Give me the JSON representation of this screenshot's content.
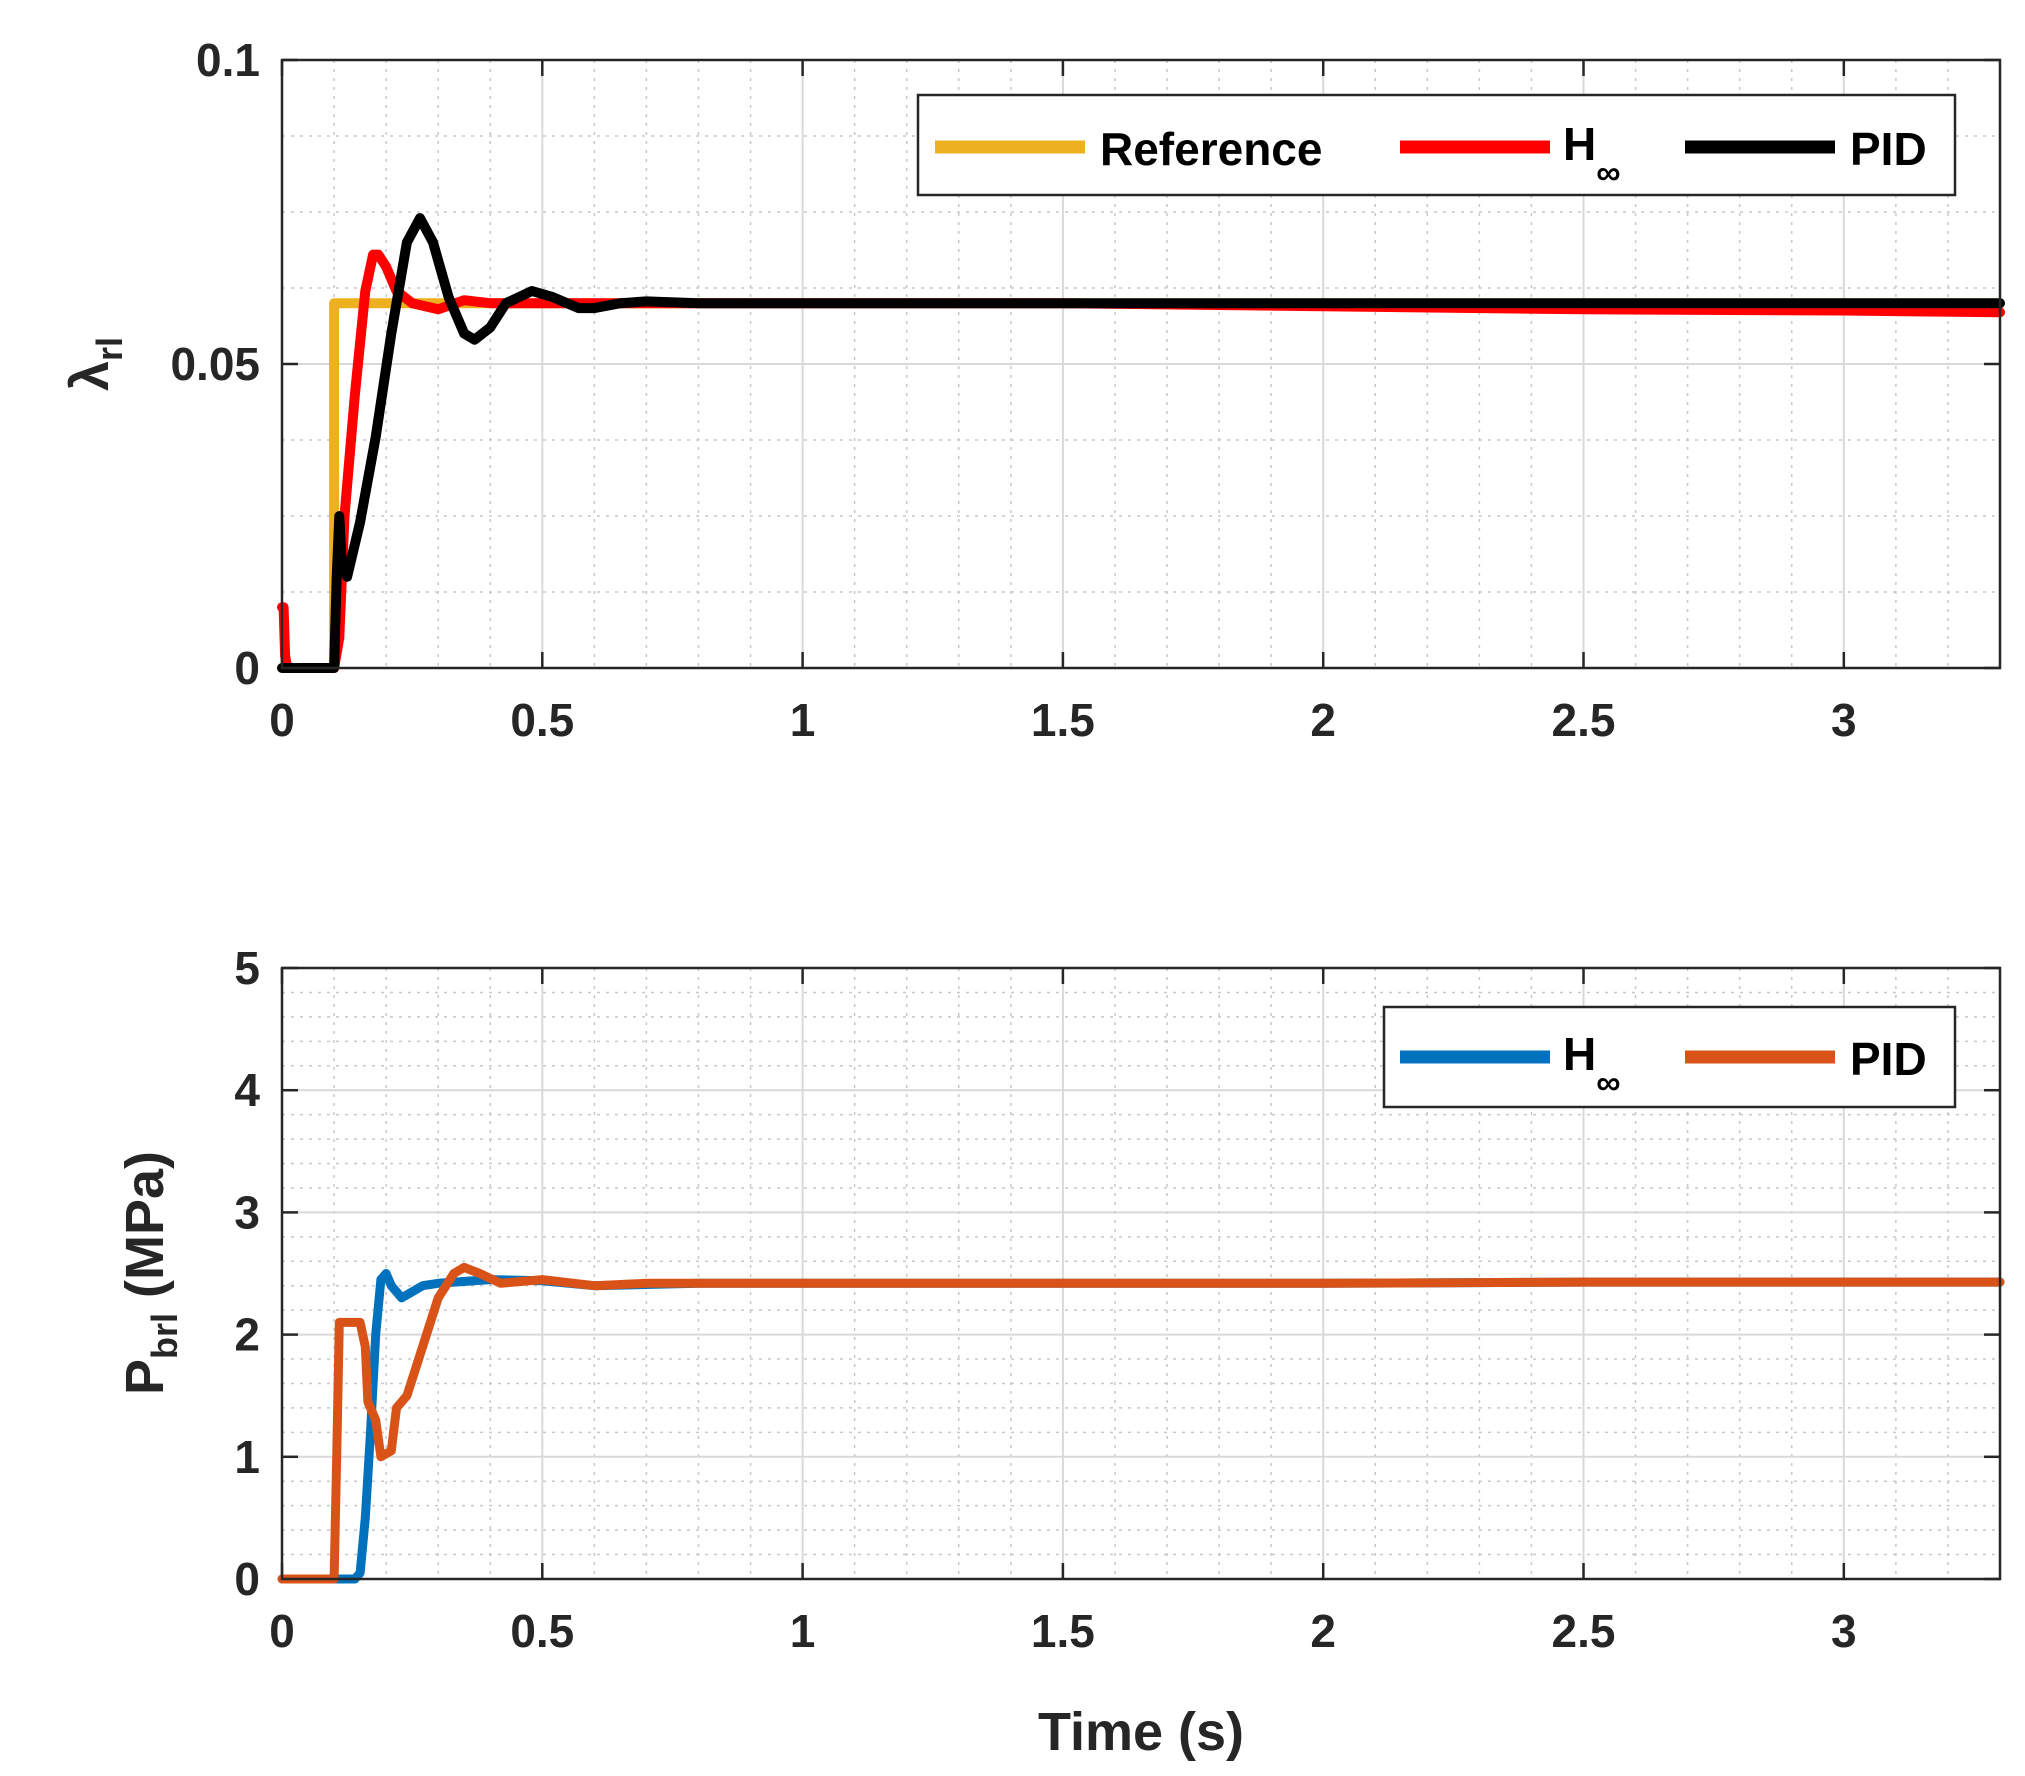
{
  "chart_data": [
    {
      "type": "line",
      "title": "",
      "xlabel": "",
      "ylabel": "λ",
      "ylabel_sub": "rl",
      "xlim": [
        0,
        3.3
      ],
      "ylim": [
        0,
        0.1
      ],
      "xticks": [
        "0",
        "0.5",
        "1",
        "1.5",
        "2",
        "2.5",
        "3"
      ],
      "xtick_values": [
        0,
        0.5,
        1,
        1.5,
        2,
        2.5,
        3
      ],
      "yticks": [
        "0",
        "0.05",
        "0.1"
      ],
      "ytick_values": [
        0,
        0.05,
        0.1
      ],
      "grid": true,
      "legend_position": "top-right",
      "legend": [
        {
          "label": "Reference",
          "sub": "",
          "color": "#EDB120"
        },
        {
          "label": "H",
          "sub": "∞",
          "color": "#FF0000"
        },
        {
          "label": "PID",
          "sub": "",
          "color": "#000000"
        }
      ],
      "series": [
        {
          "name": "Reference",
          "color": "#EDB120",
          "x": [
            0,
            0.1,
            0.1,
            0.13,
            0.3,
            0.5,
            1,
            2,
            3.3
          ],
          "y": [
            0,
            0,
            0.06,
            0.06,
            0.06,
            0.06,
            0.06,
            0.06,
            0.06
          ]
        },
        {
          "name": "H∞",
          "color": "#FF0000",
          "x": [
            0,
            0.003,
            0.006,
            0.01,
            0.02,
            0.1,
            0.11,
            0.12,
            0.14,
            0.16,
            0.175,
            0.185,
            0.2,
            0.22,
            0.25,
            0.3,
            0.35,
            0.4,
            0.5,
            1,
            1.5,
            2,
            2.5,
            3,
            3.3
          ],
          "y": [
            0.01,
            0.01,
            0.002,
            0,
            0,
            0,
            0.005,
            0.025,
            0.045,
            0.062,
            0.068,
            0.068,
            0.066,
            0.062,
            0.06,
            0.059,
            0.0605,
            0.06,
            0.06,
            0.06,
            0.06,
            0.0595,
            0.059,
            0.0588,
            0.0585
          ]
        },
        {
          "name": "PID",
          "color": "#000000",
          "x": [
            0,
            0.05,
            0.1,
            0.105,
            0.11,
            0.115,
            0.125,
            0.15,
            0.18,
            0.21,
            0.24,
            0.265,
            0.29,
            0.32,
            0.35,
            0.37,
            0.4,
            0.43,
            0.48,
            0.52,
            0.57,
            0.6,
            0.65,
            0.7,
            0.8,
            1,
            1.5,
            2,
            2.5,
            3,
            3.3
          ],
          "y": [
            0,
            0,
            0,
            0.015,
            0.025,
            0.017,
            0.015,
            0.024,
            0.038,
            0.055,
            0.07,
            0.074,
            0.07,
            0.061,
            0.055,
            0.054,
            0.056,
            0.06,
            0.062,
            0.061,
            0.0592,
            0.0592,
            0.06,
            0.0603,
            0.06,
            0.06,
            0.06,
            0.06,
            0.06,
            0.06,
            0.06
          ]
        }
      ]
    },
    {
      "type": "line",
      "title": "",
      "xlabel": "Time (s)",
      "ylabel": "P",
      "ylabel_sub": "brl",
      "ylabel_suffix": " (MPa)",
      "xlim": [
        0,
        3.3
      ],
      "ylim": [
        0,
        5
      ],
      "xticks": [
        "0",
        "0.5",
        "1",
        "1.5",
        "2",
        "2.5",
        "3"
      ],
      "xtick_values": [
        0,
        0.5,
        1,
        1.5,
        2,
        2.5,
        3
      ],
      "yticks": [
        "0",
        "1",
        "2",
        "3",
        "4",
        "5"
      ],
      "ytick_values": [
        0,
        1,
        2,
        3,
        4,
        5
      ],
      "grid": true,
      "legend_position": "top-right",
      "legend": [
        {
          "label": "H",
          "sub": "∞",
          "color": "#0072BD"
        },
        {
          "label": "PID",
          "sub": "",
          "color": "#D95319"
        }
      ],
      "series": [
        {
          "name": "H∞",
          "color": "#0072BD",
          "x": [
            0,
            0.14,
            0.15,
            0.16,
            0.17,
            0.18,
            0.19,
            0.2,
            0.21,
            0.23,
            0.27,
            0.3,
            0.4,
            0.5,
            0.6,
            0.8,
            1,
            1.5,
            2,
            2.5,
            3,
            3.3
          ],
          "y": [
            0,
            0,
            0.05,
            0.5,
            1.2,
            2.0,
            2.45,
            2.5,
            2.4,
            2.3,
            2.4,
            2.42,
            2.45,
            2.44,
            2.4,
            2.42,
            2.42,
            2.42,
            2.42,
            2.43,
            2.43,
            2.43
          ]
        },
        {
          "name": "PID",
          "color": "#D95319",
          "x": [
            0,
            0.1,
            0.105,
            0.11,
            0.15,
            0.16,
            0.165,
            0.18,
            0.19,
            0.21,
            0.22,
            0.24,
            0.27,
            0.3,
            0.33,
            0.35,
            0.38,
            0.42,
            0.5,
            0.6,
            0.7,
            1,
            1.5,
            2,
            2.5,
            3,
            3.3
          ],
          "y": [
            0,
            0,
            1.0,
            2.1,
            2.1,
            1.9,
            1.45,
            1.3,
            1.0,
            1.05,
            1.4,
            1.5,
            1.9,
            2.3,
            2.5,
            2.55,
            2.5,
            2.42,
            2.45,
            2.4,
            2.42,
            2.42,
            2.42,
            2.42,
            2.43,
            2.43,
            2.43
          ]
        }
      ]
    }
  ]
}
